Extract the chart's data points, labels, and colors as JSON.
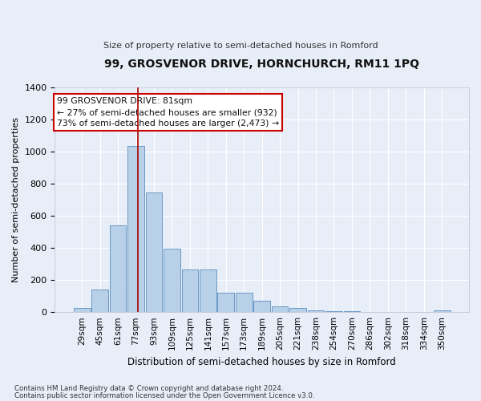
{
  "title": "99, GROSVENOR DRIVE, HORNCHURCH, RM11 1PQ",
  "subtitle": "Size of property relative to semi-detached houses in Romford",
  "xlabel": "Distribution of semi-detached houses by size in Romford",
  "ylabel": "Number of semi-detached properties",
  "footnote1": "Contains HM Land Registry data © Crown copyright and database right 2024.",
  "footnote2": "Contains public sector information licensed under the Open Government Licence v3.0.",
  "annotation_line1": "99 GROSVENOR DRIVE: 81sqm",
  "annotation_line2": "← 27% of semi-detached houses are smaller (932)",
  "annotation_line3": "73% of semi-detached houses are larger (2,473) →",
  "categories": [
    "29sqm",
    "45sqm",
    "61sqm",
    "77sqm",
    "93sqm",
    "109sqm",
    "125sqm",
    "141sqm",
    "157sqm",
    "173sqm",
    "189sqm",
    "205sqm",
    "221sqm",
    "238sqm",
    "254sqm",
    "270sqm",
    "286sqm",
    "302sqm",
    "318sqm",
    "334sqm",
    "350sqm"
  ],
  "values": [
    25,
    140,
    540,
    1035,
    745,
    395,
    265,
    265,
    120,
    120,
    70,
    35,
    25,
    10,
    5,
    5,
    0,
    0,
    0,
    0,
    10
  ],
  "bar_color": "#b8d0e8",
  "bar_edge_color": "#5a8fc0",
  "vline_x": 3.1,
  "vline_color": "#aa0000",
  "ylim": [
    0,
    1400
  ],
  "yticks": [
    0,
    200,
    400,
    600,
    800,
    1000,
    1200,
    1400
  ],
  "bg_color": "#e8eef8",
  "grid_color": "#ffffff",
  "annotation_box_color": "#ffffff",
  "annotation_box_edge": "#cc0000"
}
